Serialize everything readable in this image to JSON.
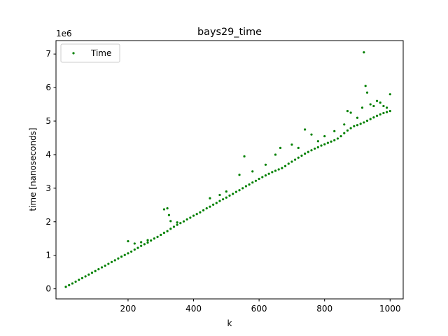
{
  "chart_data": {
    "type": "scatter",
    "title": "bays29_time",
    "xlabel": "k",
    "ylabel": "time [nanoseconds]",
    "y_scale_label": "1e6",
    "xlim": [
      -20,
      1040
    ],
    "ylim": [
      -300000,
      7400000
    ],
    "x_ticks": [
      200,
      400,
      600,
      800,
      1000
    ],
    "y_ticks": [
      0,
      1000000,
      2000000,
      3000000,
      4000000,
      5000000,
      6000000,
      7000000
    ],
    "y_tick_labels": [
      "0",
      "1",
      "2",
      "3",
      "4",
      "5",
      "6",
      "7"
    ],
    "grid": false,
    "legend_position": "top-left",
    "series": [
      {
        "name": "Time",
        "color": "#008000",
        "points": [
          [
            10,
            60000
          ],
          [
            20,
            110000
          ],
          [
            30,
            160000
          ],
          [
            40,
            215000
          ],
          [
            50,
            270000
          ],
          [
            60,
            320000
          ],
          [
            70,
            370000
          ],
          [
            80,
            425000
          ],
          [
            90,
            480000
          ],
          [
            100,
            530000
          ],
          [
            110,
            585000
          ],
          [
            120,
            640000
          ],
          [
            130,
            690000
          ],
          [
            140,
            745000
          ],
          [
            150,
            800000
          ],
          [
            160,
            850000
          ],
          [
            170,
            905000
          ],
          [
            180,
            960000
          ],
          [
            190,
            1010000
          ],
          [
            200,
            1060000
          ],
          [
            210,
            1110000
          ],
          [
            220,
            1170000
          ],
          [
            230,
            1220000
          ],
          [
            240,
            1280000
          ],
          [
            250,
            1330000
          ],
          [
            260,
            1380000
          ],
          [
            270,
            1440000
          ],
          [
            280,
            1500000
          ],
          [
            290,
            1550000
          ],
          [
            300,
            1610000
          ],
          [
            310,
            1670000
          ],
          [
            320,
            1720000
          ],
          [
            330,
            1790000
          ],
          [
            340,
            1850000
          ],
          [
            350,
            1910000
          ],
          [
            360,
            1960000
          ],
          [
            370,
            2010000
          ],
          [
            380,
            2070000
          ],
          [
            390,
            2120000
          ],
          [
            400,
            2180000
          ],
          [
            410,
            2230000
          ],
          [
            420,
            2280000
          ],
          [
            430,
            2340000
          ],
          [
            440,
            2400000
          ],
          [
            450,
            2450000
          ],
          [
            460,
            2510000
          ],
          [
            470,
            2560000
          ],
          [
            480,
            2620000
          ],
          [
            490,
            2670000
          ],
          [
            500,
            2720000
          ],
          [
            510,
            2780000
          ],
          [
            520,
            2830000
          ],
          [
            530,
            2890000
          ],
          [
            540,
            2940000
          ],
          [
            550,
            3000000
          ],
          [
            560,
            3060000
          ],
          [
            570,
            3110000
          ],
          [
            580,
            3170000
          ],
          [
            590,
            3220000
          ],
          [
            600,
            3280000
          ],
          [
            610,
            3330000
          ],
          [
            620,
            3380000
          ],
          [
            630,
            3430000
          ],
          [
            640,
            3480000
          ],
          [
            650,
            3520000
          ],
          [
            660,
            3560000
          ],
          [
            670,
            3600000
          ],
          [
            680,
            3660000
          ],
          [
            690,
            3730000
          ],
          [
            700,
            3790000
          ],
          [
            710,
            3850000
          ],
          [
            720,
            3910000
          ],
          [
            730,
            3970000
          ],
          [
            740,
            4030000
          ],
          [
            750,
            4080000
          ],
          [
            760,
            4130000
          ],
          [
            770,
            4180000
          ],
          [
            780,
            4220000
          ],
          [
            790,
            4270000
          ],
          [
            800,
            4310000
          ],
          [
            810,
            4350000
          ],
          [
            820,
            4390000
          ],
          [
            830,
            4430000
          ],
          [
            840,
            4480000
          ],
          [
            850,
            4550000
          ],
          [
            860,
            4640000
          ],
          [
            870,
            4720000
          ],
          [
            880,
            4790000
          ],
          [
            890,
            4850000
          ],
          [
            900,
            4880000
          ],
          [
            910,
            4920000
          ],
          [
            920,
            4960000
          ],
          [
            930,
            5010000
          ],
          [
            940,
            5060000
          ],
          [
            950,
            5110000
          ],
          [
            960,
            5160000
          ],
          [
            970,
            5200000
          ],
          [
            980,
            5240000
          ],
          [
            990,
            5270000
          ],
          [
            1000,
            5300000
          ],
          [
            200,
            1420000
          ],
          [
            220,
            1350000
          ],
          [
            240,
            1390000
          ],
          [
            260,
            1450000
          ],
          [
            310,
            2370000
          ],
          [
            320,
            2400000
          ],
          [
            325,
            2200000
          ],
          [
            330,
            2020000
          ],
          [
            350,
            1980000
          ],
          [
            450,
            2700000
          ],
          [
            480,
            2800000
          ],
          [
            500,
            2900000
          ],
          [
            540,
            3400000
          ],
          [
            555,
            3950000
          ],
          [
            580,
            3500000
          ],
          [
            620,
            3700000
          ],
          [
            650,
            4000000
          ],
          [
            665,
            4200000
          ],
          [
            700,
            4300000
          ],
          [
            720,
            4200000
          ],
          [
            740,
            4750000
          ],
          [
            760,
            4600000
          ],
          [
            780,
            4400000
          ],
          [
            800,
            4550000
          ],
          [
            830,
            4700000
          ],
          [
            860,
            4900000
          ],
          [
            870,
            5300000
          ],
          [
            880,
            5250000
          ],
          [
            900,
            5100000
          ],
          [
            915,
            5400000
          ],
          [
            920,
            7050000
          ],
          [
            925,
            6050000
          ],
          [
            930,
            5850000
          ],
          [
            940,
            5500000
          ],
          [
            950,
            5450000
          ],
          [
            960,
            5600000
          ],
          [
            970,
            5550000
          ],
          [
            980,
            5450000
          ],
          [
            990,
            5400000
          ],
          [
            1000,
            5800000
          ]
        ]
      }
    ]
  }
}
